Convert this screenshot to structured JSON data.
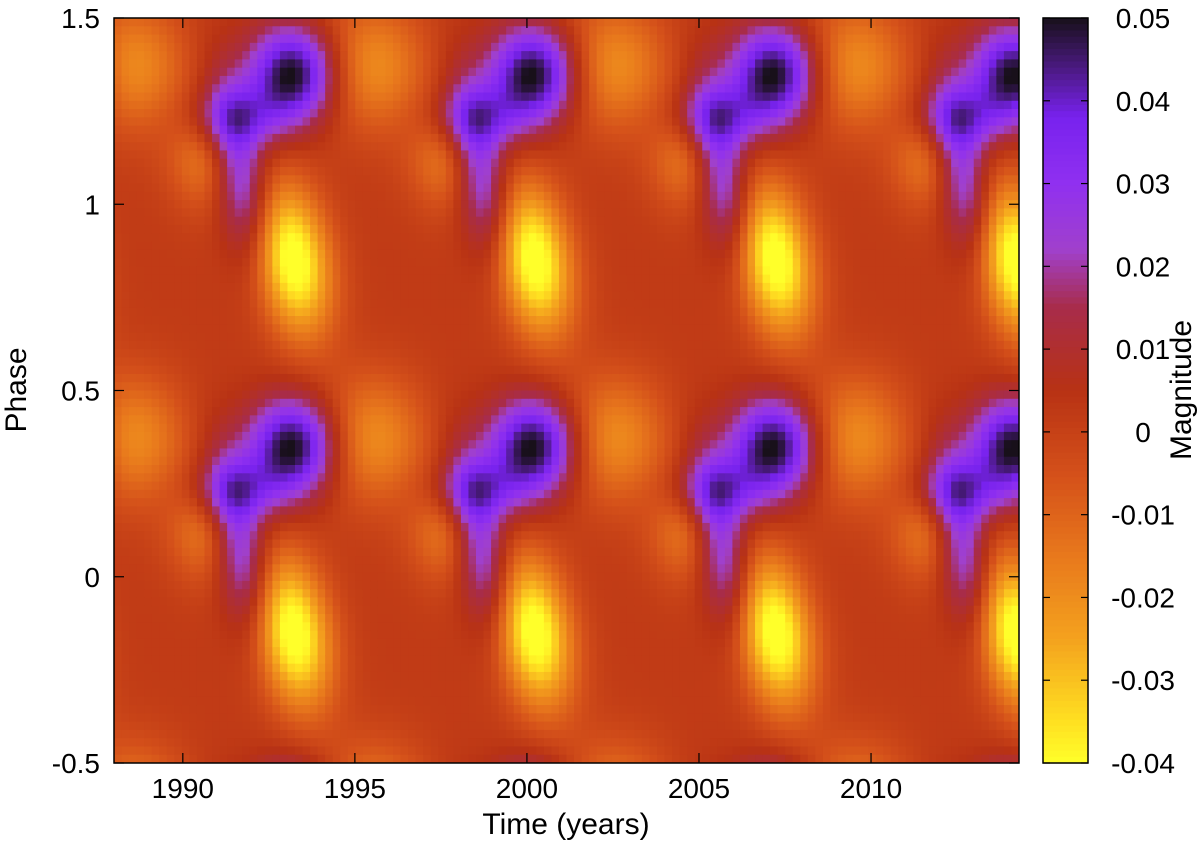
{
  "chart_data": {
    "type": "heatmap",
    "title": "",
    "xlabel": "Time (years)",
    "ylabel": "Phase",
    "xlim": [
      1988,
      2014.3
    ],
    "ylim": [
      -0.5,
      1.5
    ],
    "xticks": [
      1990,
      1995,
      2000,
      2005,
      2010
    ],
    "xtick_labels": [
      "1990",
      "1995",
      "2000",
      "2005",
      "2010"
    ],
    "yticks": [
      -0.5,
      0,
      0.5,
      1,
      1.5
    ],
    "ytick_labels": [
      "-0.5",
      "0",
      "0.5",
      "1",
      "1.5"
    ],
    "colorbar": {
      "label": "Magnitude",
      "range": [
        -0.04,
        0.05
      ],
      "ticks": [
        -0.04,
        -0.03,
        -0.02,
        -0.01,
        0,
        0.01,
        0.02,
        0.03,
        0.04,
        0.05
      ],
      "tick_labels": [
        "-0.04",
        "-0.03",
        "-0.02",
        "-0.01",
        "0",
        "0.01",
        "0.02",
        "0.03",
        "0.04",
        "0.05"
      ],
      "colormap": "gnuplot",
      "color_stops": [
        {
          "value": -0.04,
          "color": "#ffff2a"
        },
        {
          "value": -0.035,
          "color": "#ffe021"
        },
        {
          "value": -0.025,
          "color": "#f4a21e"
        },
        {
          "value": -0.015,
          "color": "#e8781c"
        },
        {
          "value": -0.005,
          "color": "#d4501a"
        },
        {
          "value": 0.005,
          "color": "#b83214"
        },
        {
          "value": 0.015,
          "color": "#a82c4a"
        },
        {
          "value": 0.022,
          "color": "#a040cc"
        },
        {
          "value": 0.03,
          "color": "#9030f0"
        },
        {
          "value": 0.038,
          "color": "#7822ee"
        },
        {
          "value": 0.044,
          "color": "#4a1a80"
        },
        {
          "value": 0.05,
          "color": "#18101a"
        }
      ]
    },
    "field": {
      "cycle_period_years": 7.0,
      "first_cycle_year": 1993.2,
      "phase_period": 1.0,
      "dark_peak_phase": 0.35,
      "bright_peak_phase": 0.85,
      "baseline": 0.002,
      "features": [
        {
          "name": "dark-core",
          "amplitude": 0.05,
          "dt": 0.0,
          "dphi": 0.0,
          "sigma_t": 0.9,
          "sigma_phi": 0.09,
          "slope": 0.0
        },
        {
          "name": "purple-band",
          "amplitude": 0.034,
          "dt": -1.6,
          "dphi": -0.25,
          "sigma_t": 0.55,
          "sigma_phi": 0.16,
          "slope": -1.6
        },
        {
          "name": "purple-arm",
          "amplitude": 0.024,
          "dt": -1.6,
          "dphi": -0.12,
          "sigma_t": 1.0,
          "sigma_phi": 0.06,
          "slope": 0.0
        },
        {
          "name": "bright-streak",
          "amplitude": -0.047,
          "dt": 0.0,
          "dphi": -0.5,
          "sigma_t": 0.75,
          "sigma_phi": 0.14,
          "slope": -1.4
        },
        {
          "name": "orange-patch",
          "amplitude": -0.022,
          "dt": 2.3,
          "dphi": 0.02,
          "sigma_t": 1.1,
          "sigma_phi": 0.12,
          "slope": 0.0
        },
        {
          "name": "orange-patch-2",
          "amplitude": -0.02,
          "dt": -2.4,
          "dphi": -0.22,
          "sigma_t": 0.8,
          "sigma_phi": 0.1,
          "slope": 0.0
        }
      ]
    }
  }
}
